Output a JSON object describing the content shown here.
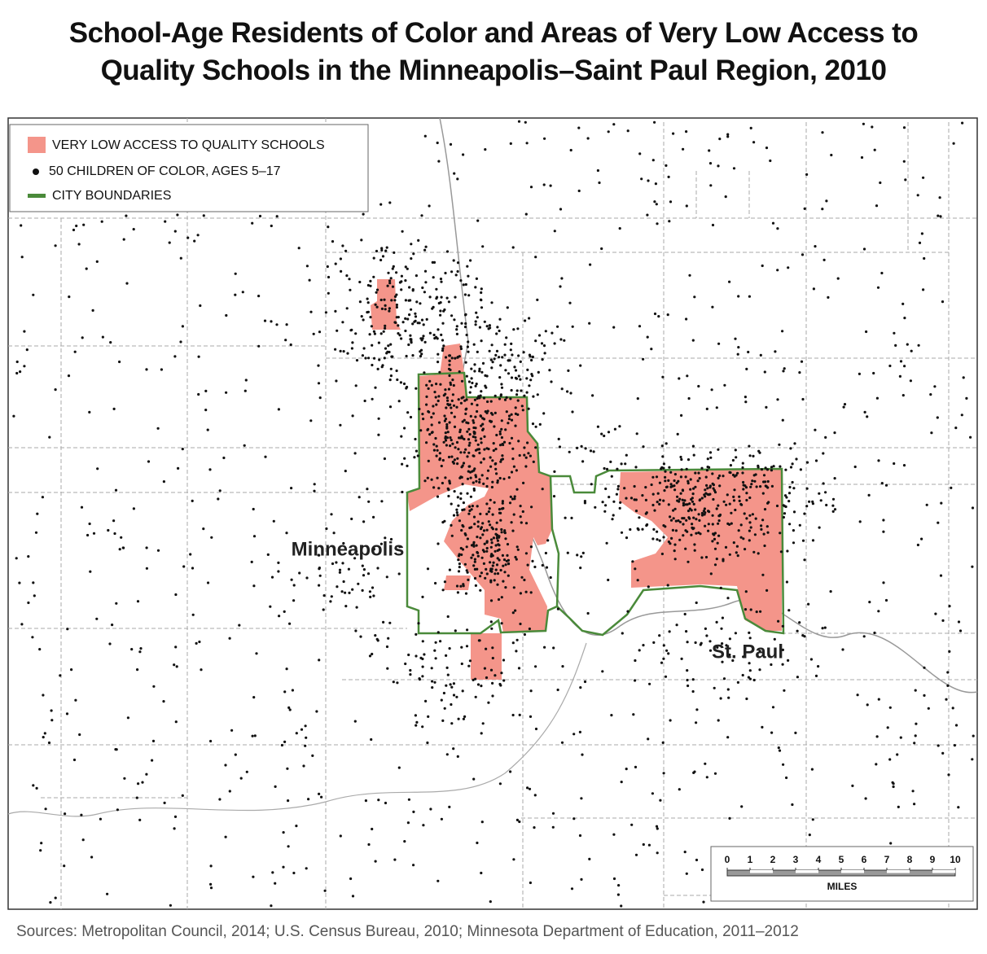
{
  "title": [
    "School-Age Residents of Color and Areas of Very Low Access to",
    "Quality Schools in the Minneapolis–Saint Paul Region, 2010"
  ],
  "legend": [
    "VERY LOW ACCESS TO QUALITY SCHOOLS",
    "50 CHILDREN OF COLOR, AGES 5–17",
    "CITY BOUNDARIES"
  ],
  "places": [
    "Minneapolis",
    "St. Paul"
  ],
  "scale": {
    "ticks": [
      0,
      1,
      2,
      3,
      4,
      5,
      6,
      7,
      8,
      9,
      10
    ],
    "unit": "MILES"
  },
  "sources": "Sources: Metropolitan Council, 2014; U.S. Census Bureau, 2010; Minnesota Department of Education, 2011–2012"
}
